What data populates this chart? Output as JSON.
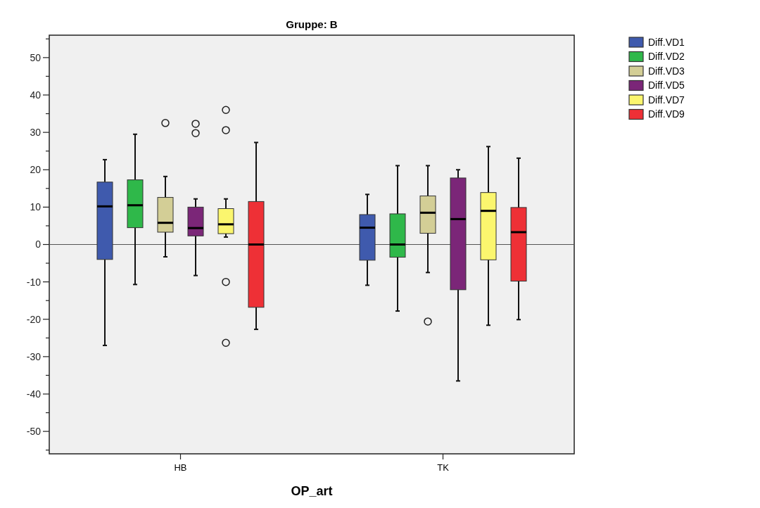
{
  "chart_data": {
    "type": "box",
    "title": "Gruppe: B",
    "xlabel": "OP_art",
    "categories": [
      "HB",
      "TK"
    ],
    "ylim": [
      -56,
      56
    ],
    "yticks": [
      {
        "value": -55,
        "label": null
      },
      -50,
      {
        "value": -45,
        "label": null
      },
      -40,
      {
        "value": -35,
        "label": null
      },
      -30,
      {
        "value": -25,
        "label": null
      },
      -20,
      {
        "value": -15,
        "label": null
      },
      -10,
      {
        "value": -5,
        "label": null
      },
      0,
      {
        "value": 5,
        "label": null
      },
      10,
      {
        "value": 15,
        "label": null
      },
      20,
      {
        "value": 25,
        "label": null
      },
      30,
      {
        "value": 35,
        "label": null
      },
      40,
      {
        "value": 45,
        "label": null
      },
      50,
      {
        "value": 55,
        "label": null
      }
    ],
    "grid": false,
    "legend": "top right",
    "ref_lines": [
      {
        "axis": "y",
        "value": 0,
        "color": "#555555"
      }
    ],
    "series": [
      {
        "name": "Diff.VD1",
        "color": "#3f5aad",
        "boxes": [
          {
            "low": -27,
            "q1": -4,
            "median": 10.2,
            "q3": 16.7,
            "high": 22.7
          },
          {
            "low": -10.9,
            "q1": -4.2,
            "median": 4.5,
            "q3": 8,
            "high": 13.4
          }
        ]
      },
      {
        "name": "Diff.VD2",
        "color": "#2fb84a",
        "boxes": [
          {
            "low": -10.7,
            "q1": 4.5,
            "median": 10.5,
            "q3": 17.3,
            "high": 29.5
          },
          {
            "low": -17.8,
            "q1": -3.4,
            "median": 0,
            "q3": 8.2,
            "high": 21.1
          }
        ]
      },
      {
        "name": "Diff.VD3",
        "color": "#d3ce96",
        "boxes": [
          {
            "low": -3.3,
            "q1": 3.3,
            "median": 5.8,
            "q3": 12.6,
            "high": 18.2,
            "outliers": [
              32.5
            ]
          },
          {
            "low": -7.5,
            "q1": 3,
            "median": 8.5,
            "q3": 13,
            "high": 21.1,
            "outliers": [
              -20.6
            ]
          }
        ]
      },
      {
        "name": "Diff.VD5",
        "color": "#7b2678",
        "boxes": [
          {
            "low": -8.3,
            "q1": 2.3,
            "median": 4.4,
            "q3": 10,
            "high": 12.2,
            "outliers": [
              32.3,
              29.8
            ]
          },
          {
            "low": -36.5,
            "q1": -12.1,
            "median": 6.8,
            "q3": 17.8,
            "high": 20
          }
        ]
      },
      {
        "name": "Diff.VD7",
        "color": "#fbf66e",
        "boxes": [
          {
            "low": 2,
            "q1": 2.9,
            "median": 5.4,
            "q3": 9.6,
            "high": 12.2,
            "outliers": [
              36,
              30.6,
              -10,
              -26.3
            ]
          },
          {
            "low": -21.6,
            "q1": -4.1,
            "median": 9,
            "q3": 13.9,
            "high": 26.2
          }
        ]
      },
      {
        "name": "Diff.VD9",
        "color": "#ee3036",
        "boxes": [
          {
            "low": -22.7,
            "q1": -16.8,
            "median": 0,
            "q3": 11.5,
            "high": 27.3
          },
          {
            "low": -20.1,
            "q1": -9.8,
            "median": 3.3,
            "q3": 9.9,
            "high": 23.1
          }
        ]
      }
    ]
  }
}
